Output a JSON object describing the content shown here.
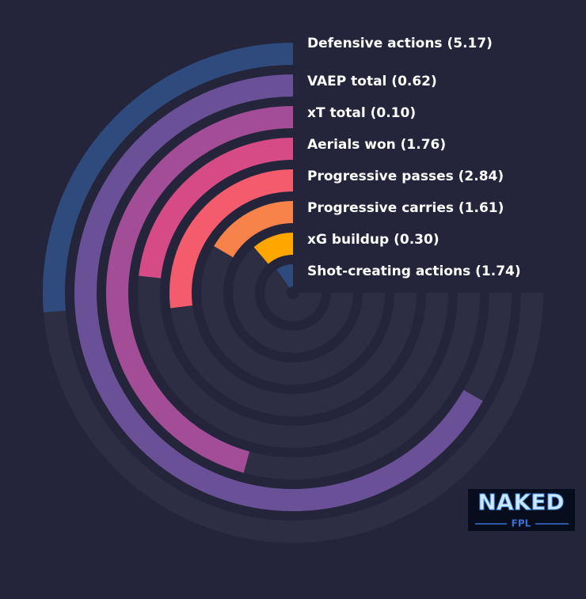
{
  "chart_data": {
    "type": "radial-bar",
    "categories": [
      "Defensive actions (5.17)",
      "VAEP total (0.62)",
      "xT total (0.10)",
      "Aerials won (1.76)",
      "Progressive passes (2.84)",
      "Progressive carries (1.61)",
      "xG buildup (0.30)",
      "Shot-creating actions (1.74)"
    ],
    "values": [
      35,
      89,
      61,
      31,
      36,
      22,
      15,
      13
    ],
    "colors": [
      "#2f4a7c",
      "#6a5197",
      "#a34d97",
      "#d64b86",
      "#f45c6d",
      "#f8834a",
      "#ffa600",
      "#2f4a7c"
    ],
    "track_color": "#2d2e43",
    "ylim": [
      0,
      100
    ]
  },
  "logo": {
    "title": "NAKED",
    "subtitle": "FPL"
  }
}
